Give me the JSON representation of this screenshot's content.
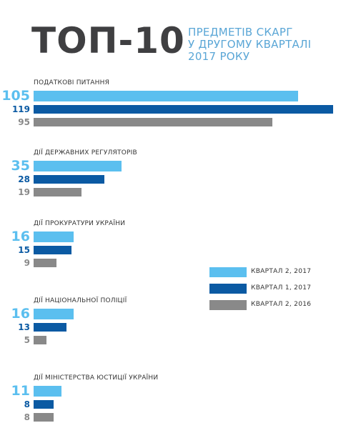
{
  "header": {
    "title": "ТОП-10",
    "subtitle_lines": [
      "ПРЕДМЕТІВ СКАРГ",
      "У ДРУГОМУ КВАРТАЛІ",
      "2017 РОКУ"
    ]
  },
  "colors": {
    "q2_2017": "#5bbfef",
    "q1_2017": "#0b5aa3",
    "q2_2016": "#898989",
    "title": "#3f3f41",
    "subtitle": "#5aa6d6"
  },
  "chart_data": {
    "type": "bar",
    "orientation": "horizontal",
    "title": "ТОП-10",
    "subtitle": "ПРЕДМЕТІВ СКАРГ У ДРУГОМУ КВАРТАЛІ 2017 РОКУ",
    "categories": [
      "ПОДАТКОВІ ПИТАННЯ",
      "ДІЇ ДЕРЖАВНИХ РЕГУЛЯТОРІВ",
      "ДІЇ ПРОКУРАТУРИ УКРАЇНИ",
      "ДІЇ НАЦІОНАЛЬНОЇ ПОЛІЦІЇ",
      "ДІЇ МІНІСТЕРСТВА ЮСТИЦІЇ УКРАЇНИ"
    ],
    "series": [
      {
        "name": "КВАРТАЛ 2, 2017",
        "color": "#5bbfef",
        "values": [
          105,
          35,
          16,
          16,
          11
        ]
      },
      {
        "name": "КВАРТАЛ 1, 2017",
        "color": "#0b5aa3",
        "values": [
          119,
          28,
          15,
          13,
          8
        ]
      },
      {
        "name": "КВАРТАЛ 2, 2016",
        "color": "#898989",
        "values": [
          95,
          19,
          9,
          5,
          8
        ]
      }
    ],
    "legend_position": "right",
    "grid": false,
    "axis_visible": false
  }
}
